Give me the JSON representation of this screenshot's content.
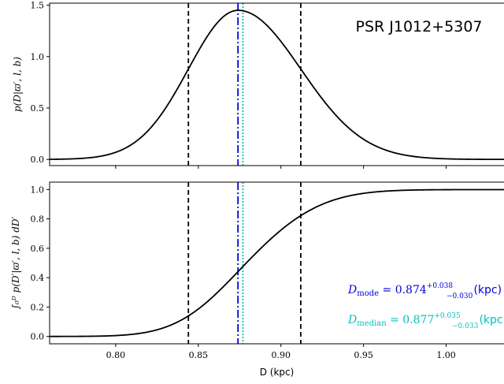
{
  "chart_data": [
    {
      "type": "line",
      "title": "PSR J1012+5307",
      "ylabel": "p(D|ϖ′, l, b)",
      "xlim": [
        0.76,
        1.035
      ],
      "ylim": [
        -0.06,
        1.52
      ],
      "yticks": [
        "0.0",
        "0.5",
        "1.0",
        "1.5"
      ],
      "ytick_values": [
        0,
        0.5,
        1.0,
        1.5
      ],
      "curve": {
        "kind": "pdf",
        "mode": 0.874,
        "sigma_low": 0.03,
        "sigma_high": 0.038,
        "peak": 1.45
      },
      "vlines": [
        {
          "x": 0.844,
          "style": "dashed",
          "color": "#000000"
        },
        {
          "x": 0.912,
          "style": "dashed",
          "color": "#000000"
        },
        {
          "x": 0.874,
          "style": "dashdot",
          "color": "#0000dd"
        },
        {
          "x": 0.877,
          "style": "dotted",
          "color": "#00bfbf"
        }
      ]
    },
    {
      "type": "line",
      "ylabel": "∫₀ᴰ p(D′|ϖ′, l, b) dD′",
      "xlabel": "D (kpc)",
      "xlim": [
        0.76,
        1.035
      ],
      "ylim": [
        -0.05,
        1.05
      ],
      "xticks": [
        "0.80",
        "0.85",
        "0.90",
        "0.95",
        "1.00"
      ],
      "xtick_values": [
        0.8,
        0.85,
        0.9,
        0.95,
        1.0
      ],
      "yticks": [
        "0.0",
        "0.2",
        "0.4",
        "0.6",
        "0.8",
        "1.0"
      ],
      "ytick_values": [
        0,
        0.2,
        0.4,
        0.6,
        0.8,
        1.0
      ],
      "curve": {
        "kind": "cdf"
      },
      "vlines": [
        {
          "x": 0.844,
          "style": "dashed",
          "color": "#000000"
        },
        {
          "x": 0.912,
          "style": "dashed",
          "color": "#000000"
        },
        {
          "x": 0.874,
          "style": "dashdot",
          "color": "#0000dd"
        },
        {
          "x": 0.877,
          "style": "dotted",
          "color": "#00bfbf"
        }
      ],
      "annotations": [
        {
          "symbol": "D",
          "sub": "mode",
          "eq": " = 0.874",
          "sup": "+0.038",
          "subv": "−0.030",
          "unit": " (kpc)",
          "color": "#0000dd"
        },
        {
          "symbol": "D",
          "sub": "median",
          "eq": " = 0.877",
          "sup": "+0.035",
          "subv": "−0.033",
          "unit": " (kpc)",
          "color": "#00bfbf"
        }
      ]
    }
  ]
}
